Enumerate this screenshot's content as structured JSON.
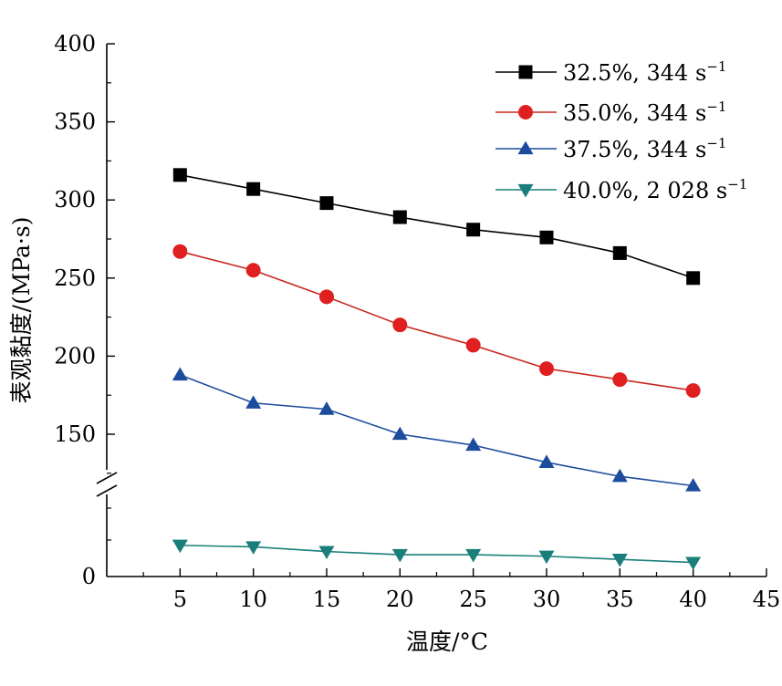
{
  "chart_data": {
    "type": "line",
    "xlabel": "温度/°C",
    "ylabel": "表观黏度/(MPa·s)",
    "x_ticks": [
      "5",
      "10",
      "15",
      "20",
      "25",
      "30",
      "35",
      "40",
      "45"
    ],
    "xlim": [
      0,
      45
    ],
    "y_ticks": [
      "400",
      "350",
      "300",
      "250",
      "200",
      "150",
      "0"
    ],
    "ylim_upper": [
      100,
      400
    ],
    "y_axis_break": true,
    "x": [
      5,
      10,
      15,
      20,
      25,
      30,
      35,
      40
    ],
    "series": [
      {
        "name": "32.5%, 344 s",
        "superscript": "−1",
        "color": "#000000",
        "fill": "#000000",
        "marker": "square",
        "values": [
          316,
          307,
          298,
          289,
          281,
          276,
          266,
          250
        ]
      },
      {
        "name": "35.0%, 344 s",
        "superscript": "−1",
        "color": "#c8281e",
        "fill": "#e02020",
        "marker": "circle",
        "values": [
          267,
          255,
          238,
          220,
          207,
          192,
          185,
          178
        ]
      },
      {
        "name": "37.5%, 344 s",
        "superscript": "−1",
        "color": "#1c4c9c",
        "fill": "#1c4c9c",
        "marker": "triangle-up",
        "values": [
          188,
          170,
          166,
          150,
          143,
          132,
          123,
          117
        ]
      },
      {
        "name": "40.0%, 2 028 s",
        "superscript": "−1",
        "color": "#1a7f7a",
        "fill": "#1a7f7a",
        "marker": "triangle-down",
        "values": [
          20,
          19,
          16,
          14,
          14,
          13,
          11,
          9
        ]
      }
    ],
    "legend": "top-right",
    "grid": false
  }
}
